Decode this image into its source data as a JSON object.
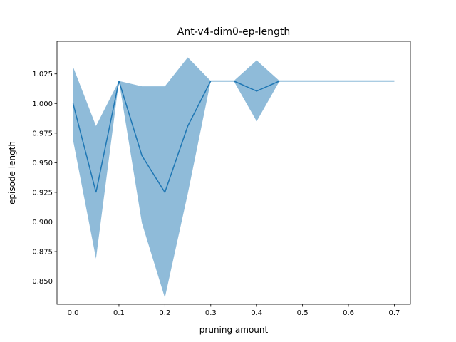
{
  "chart_data": {
    "type": "line",
    "title": "Ant-v4-dim0-ep-length",
    "xlabel": "pruning amount",
    "ylabel": "episode length",
    "xlim": [
      -0.035,
      0.735
    ],
    "ylim": [
      0.8305,
      1.0525
    ],
    "x_ticks": [
      0.0,
      0.1,
      0.2,
      0.3,
      0.4,
      0.5,
      0.6,
      0.7
    ],
    "x_tick_labels": [
      "0.0",
      "0.1",
      "0.2",
      "0.3",
      "0.4",
      "0.5",
      "0.6",
      "0.7"
    ],
    "y_ticks": [
      0.85,
      0.875,
      0.9,
      0.925,
      0.95,
      0.975,
      1.0,
      1.025
    ],
    "y_tick_labels": [
      "0.850",
      "0.875",
      "0.900",
      "0.925",
      "0.950",
      "0.975",
      "1.000",
      "1.025"
    ],
    "grid": false,
    "series": [
      {
        "x": [
          0.0,
          0.05,
          0.1,
          0.15,
          0.2,
          0.25,
          0.3,
          0.35,
          0.4,
          0.45,
          0.5,
          0.55,
          0.6,
          0.65,
          0.7
        ],
        "values": [
          1.0,
          0.925,
          1.019,
          0.956,
          0.925,
          0.981,
          1.019,
          1.019,
          1.0105,
          1.019,
          1.019,
          1.019,
          1.019,
          1.019,
          1.019
        ],
        "lower": [
          0.969,
          0.869,
          1.019,
          0.899,
          0.836,
          0.924,
          1.019,
          1.019,
          0.985,
          1.019,
          1.019,
          1.019,
          1.019,
          1.019,
          1.019
        ],
        "upper": [
          1.031,
          0.981,
          1.019,
          1.0145,
          1.0145,
          1.039,
          1.019,
          1.019,
          1.0365,
          1.019,
          1.019,
          1.019,
          1.019,
          1.019,
          1.019
        ],
        "color": "#1f77b4",
        "band_color": "#1f77b4"
      }
    ]
  }
}
